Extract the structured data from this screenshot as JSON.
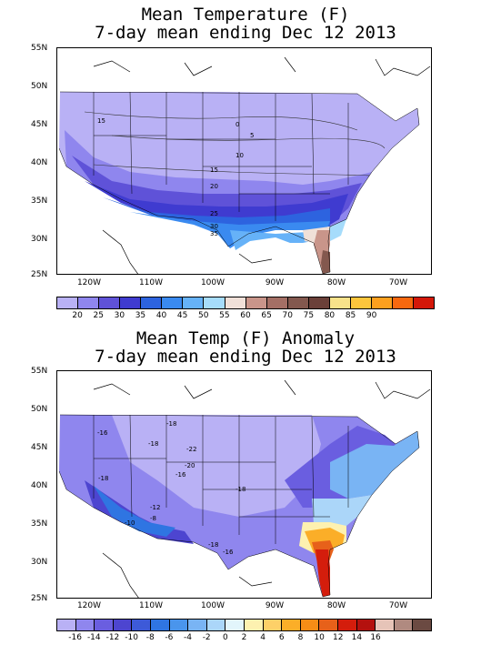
{
  "top": {
    "title_line1": "Mean Temperature (F)",
    "title_line2": "7-day mean ending Dec 12 2013",
    "lat_labels": [
      "55N",
      "50N",
      "45N",
      "40N",
      "35N",
      "30N",
      "25N"
    ],
    "lon_labels": [
      "120W",
      "110W",
      "100W",
      "90W",
      "80W",
      "70W"
    ],
    "contour_labels": [
      "15",
      "0",
      "5",
      "10",
      "15",
      "20",
      "25",
      "30",
      "35"
    ],
    "colorbar_colors": [
      "#b9b1f5",
      "#8f86ee",
      "#5f52d8",
      "#3f3bd0",
      "#2d63df",
      "#3a8af0",
      "#66b2f8",
      "#a6dcfb",
      "#f0e0d8",
      "#c9958a",
      "#a46f65",
      "#83584e",
      "#6b4039",
      "#f8e28a",
      "#fdc63c",
      "#fda01e",
      "#f7680e",
      "#d41809"
    ],
    "colorbar_ticks": [
      "20",
      "25",
      "30",
      "35",
      "40",
      "45",
      "50",
      "55",
      "60",
      "65",
      "70",
      "75",
      "80",
      "85",
      "90"
    ]
  },
  "bottom": {
    "title_line1": "Mean Temp (F) Anomaly",
    "title_line2": "7-day mean ending Dec 12 2013",
    "lat_labels": [
      "55N",
      "50N",
      "45N",
      "40N",
      "35N",
      "30N",
      "25N"
    ],
    "lon_labels": [
      "120W",
      "110W",
      "100W",
      "90W",
      "80W",
      "70W"
    ],
    "contour_labels": [
      "-16",
      "-18",
      "-22",
      "-20",
      "-16",
      "-18",
      "-12",
      "-10",
      "-8",
      "-18",
      "-16",
      "-18",
      "-18"
    ],
    "colorbar_colors": [
      "#b9b1f5",
      "#8f86ee",
      "#6a5ee0",
      "#4d45d0",
      "#3d5ad8",
      "#2f75e2",
      "#4a95ec",
      "#79b4f4",
      "#abd6f9",
      "#e2f5fb",
      "#fdf1b0",
      "#fdd068",
      "#fbae28",
      "#f68d16",
      "#e7611a",
      "#d41d0c",
      "#b4110e",
      "#e6c4b8",
      "#b08a80",
      "#6b4a42"
    ],
    "colorbar_ticks": [
      "-16",
      "-14",
      "-12",
      "-10",
      "-8",
      "-6",
      "-4",
      "-2",
      "0",
      "2",
      "4",
      "6",
      "8",
      "10",
      "12",
      "14",
      "16"
    ]
  }
}
